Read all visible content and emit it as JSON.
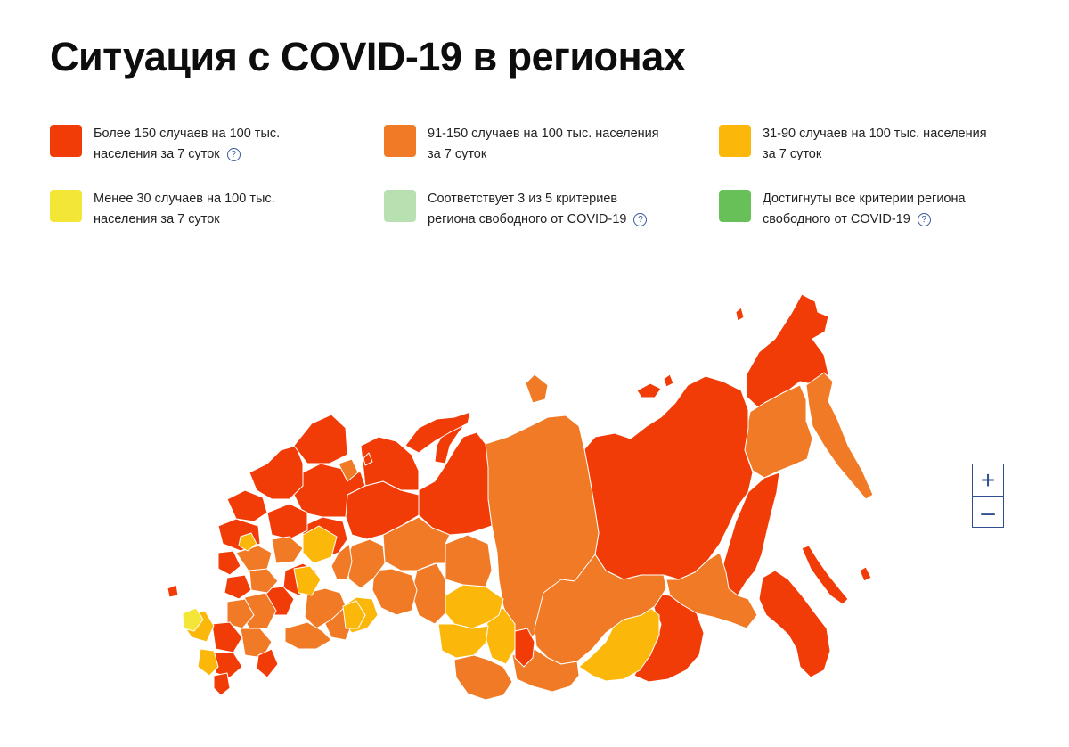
{
  "title": "Ситуация с COVID-19 в регионах",
  "colors": {
    "over150": "#f23c08",
    "from91to150": "#f07a25",
    "from31to90": "#fbb80b",
    "under30": "#f3e637",
    "criteria3of5": "#b9e0b0",
    "allCriteria": "#68c059",
    "border": "#ffffff"
  },
  "legend": [
    {
      "color": "#f23c08",
      "line1": "Более 150 случаев на 100 тыс.",
      "line2": "населения за 7 суток",
      "help": "?"
    },
    {
      "color": "#f07a25",
      "line1": "91-150 случаев на 100 тыс. населения",
      "line2": "за 7 суток",
      "help": ""
    },
    {
      "color": "#fbb80b",
      "line1": "31-90 случаев на 100 тыс. населения",
      "line2": "за 7 суток",
      "help": ""
    },
    {
      "color": "#f3e637",
      "line1": "Менее 30 случаев на 100 тыс.",
      "line2": "населения за 7 суток",
      "help": ""
    },
    {
      "color": "#b9e0b0",
      "line1": "Соответствует 3 из 5 критериев",
      "line2": "региона свободного от COVID-19",
      "help": "?"
    },
    {
      "color": "#68c059",
      "line1": "Достигнуты все критерии региона",
      "line2": "свободного от COVID-19",
      "help": "?"
    }
  ],
  "zoom": {
    "in_label": "+",
    "out_label": "–"
  }
}
